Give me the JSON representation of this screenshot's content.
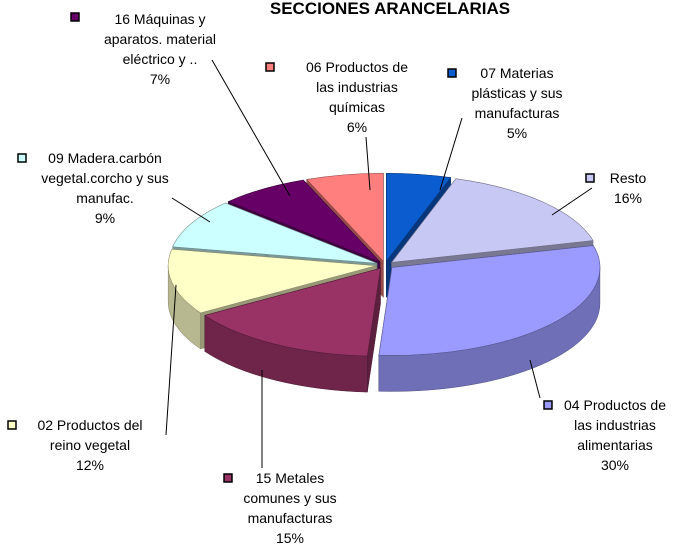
{
  "chart_data": {
    "type": "pie3d",
    "title": "SECCIONES ARANCELARIAS",
    "categories": [
      "07 Materias plásticas y sus manufacturas",
      "Resto",
      "04 Productos de las industrias alimentarias",
      "15 Metales comunes y sus manufacturas",
      "02 Productos del reino vegetal",
      "09 Madera.carbón vegetal.corcho y sus manufac.",
      "16 Máquinas y aparatos. material eléctrico y ..",
      "06 Productos de las industrias químicas"
    ],
    "values": [
      5,
      16,
      30,
      15,
      12,
      9,
      7,
      6
    ],
    "value_labels": [
      "5%",
      "16%",
      "30%",
      "15%",
      "12%",
      "9%",
      "7%",
      "6%"
    ],
    "colors": [
      "#0a5ccf",
      "#c8c8f4",
      "#9a9aff",
      "#993366",
      "#ffffc8",
      "#ccffff",
      "#660066",
      "#ff7f7f"
    ]
  }
}
